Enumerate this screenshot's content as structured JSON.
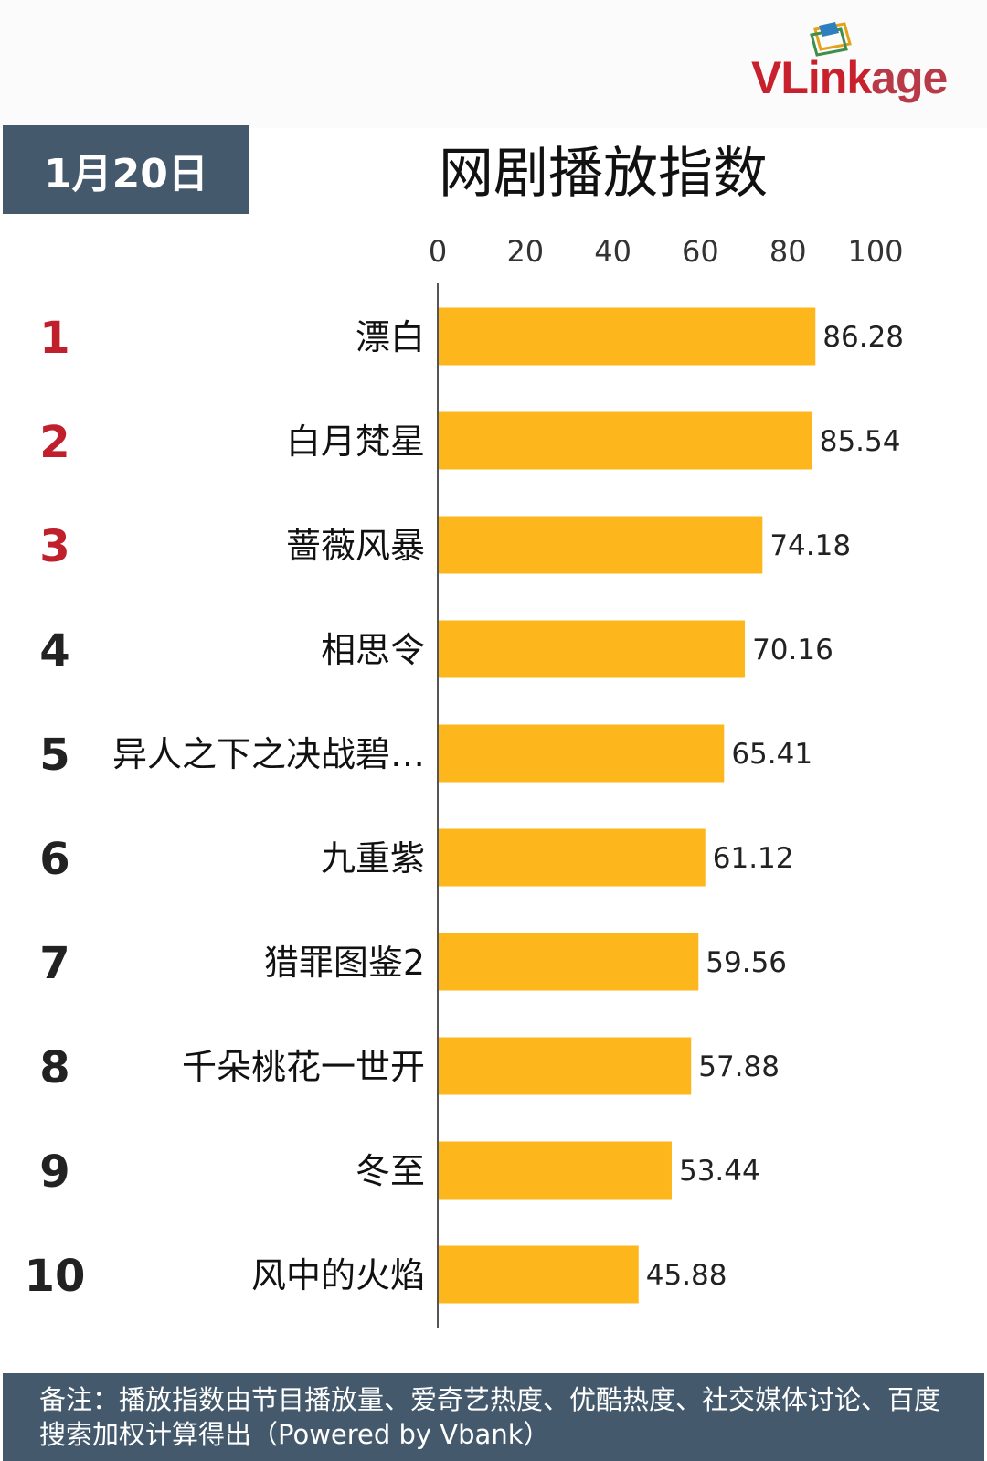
{
  "header": {
    "date": "1月20日",
    "logo_text": "VLinkage",
    "logo_icon": "vlinkage-logo-icon"
  },
  "chart_data": {
    "type": "bar",
    "orientation": "horizontal",
    "title": "网剧播放指数",
    "xlim": [
      0,
      100
    ],
    "xticks": [
      "0",
      "20",
      "40",
      "60",
      "80",
      "100"
    ],
    "grid": false,
    "ranks": [
      "1",
      "2",
      "3",
      "4",
      "5",
      "6",
      "7",
      "8",
      "9",
      "10"
    ],
    "categories": [
      "漂白",
      "白月梵星",
      "蔷薇风暴",
      "相思令",
      "异人之下之决战碧…",
      "九重紫",
      "猎罪图鉴2",
      "千朵桃花一世开",
      "冬至",
      "风中的火焰"
    ],
    "values": [
      86.28,
      85.54,
      74.18,
      70.16,
      65.41,
      61.12,
      59.56,
      57.88,
      53.44,
      45.88
    ],
    "value_labels": [
      "86.28",
      "85.54",
      "74.18",
      "70.16",
      "65.41",
      "61.12",
      "59.56",
      "57.88",
      "53.44",
      "45.88"
    ],
    "bar_color": "#fdb71d",
    "top_rank_color": "#c0202c",
    "rank_color": "#222222"
  },
  "footer": {
    "note": "备注：播放指数由节目播放量、爱奇艺热度、优酷热度、社交媒体讨论、百度搜索加权计算得出（Powered by Vbank）"
  },
  "colors": {
    "badge_bg": "#44596c",
    "footer_bg": "#44596c",
    "brand_red": "#c8202d"
  }
}
